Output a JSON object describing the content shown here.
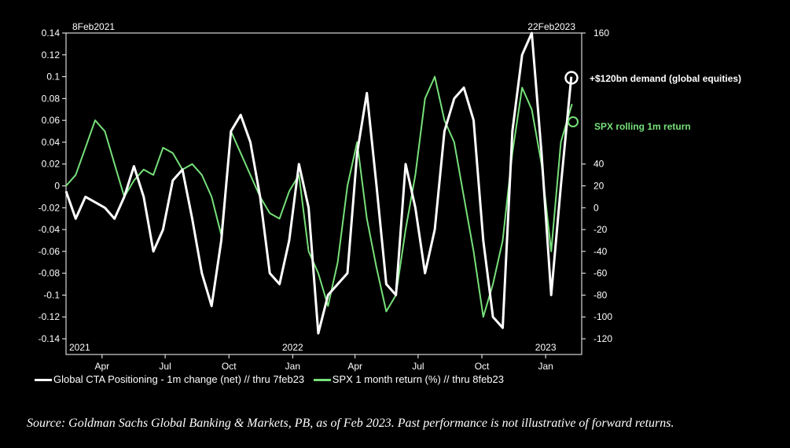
{
  "chart_data": {
    "type": "line",
    "date_range": {
      "start_label": "8Feb2021",
      "end_label": "22Feb2023"
    },
    "x_tick_labels": [
      "Apr",
      "Jul",
      "Oct",
      "Jan",
      "Apr",
      "Jul",
      "Oct",
      "Jan"
    ],
    "year_labels": [
      "2021",
      "2022",
      "2023"
    ],
    "left_axis": {
      "ylim": [
        -0.14,
        0.14
      ],
      "ticks": [
        "0.14",
        "0.12",
        "0.1",
        "0.08",
        "0.06",
        "0.04",
        "0.02",
        "0",
        "-0.02",
        "-0.04",
        "-0.06",
        "-0.08",
        "-0.1",
        "-0.12",
        "-0.14"
      ]
    },
    "right_axis": {
      "ylim": [
        -120,
        160
      ],
      "ticks": [
        "160",
        "40",
        "20",
        "0",
        "-20",
        "-40",
        "-60",
        "-80",
        "-100",
        "-120"
      ]
    },
    "series": [
      {
        "name": "Global CTA Positioning - 1m change (net) // thru 7feb23",
        "axis": "left",
        "color": "#ffffff",
        "x": [
          "2021-02-08",
          "2021-02-22",
          "2021-03-08",
          "2021-03-22",
          "2021-04-05",
          "2021-04-19",
          "2021-05-03",
          "2021-05-17",
          "2021-05-31",
          "2021-06-14",
          "2021-06-28",
          "2021-07-12",
          "2021-07-26",
          "2021-08-09",
          "2021-08-23",
          "2021-09-06",
          "2021-09-20",
          "2021-10-04",
          "2021-10-18",
          "2021-11-01",
          "2021-11-15",
          "2021-11-29",
          "2021-12-13",
          "2021-12-27",
          "2022-01-10",
          "2022-01-24",
          "2022-02-07",
          "2022-02-21",
          "2022-03-07",
          "2022-03-21",
          "2022-04-04",
          "2022-04-18",
          "2022-05-02",
          "2022-05-16",
          "2022-05-30",
          "2022-06-13",
          "2022-06-27",
          "2022-07-11",
          "2022-07-25",
          "2022-08-08",
          "2022-08-22",
          "2022-09-05",
          "2022-09-19",
          "2022-10-03",
          "2022-10-17",
          "2022-10-31",
          "2022-11-14",
          "2022-11-28",
          "2022-12-12",
          "2022-12-26",
          "2023-01-09",
          "2023-01-23",
          "2023-02-07"
        ],
        "values": [
          -0.005,
          -0.03,
          -0.01,
          -0.015,
          -0.02,
          -0.03,
          -0.01,
          0.018,
          -0.01,
          -0.06,
          -0.04,
          0.005,
          0.015,
          -0.03,
          -0.08,
          -0.11,
          -0.05,
          0.05,
          0.065,
          0.04,
          -0.01,
          -0.08,
          -0.09,
          -0.05,
          0.02,
          -0.02,
          -0.135,
          -0.1,
          -0.09,
          -0.08,
          0.03,
          0.085,
          0.0,
          -0.09,
          -0.1,
          0.02,
          -0.02,
          -0.08,
          -0.04,
          0.05,
          0.08,
          0.09,
          0.06,
          -0.05,
          -0.12,
          -0.13,
          0.05,
          0.12,
          0.14,
          0.03,
          -0.1,
          0.0,
          0.1
        ]
      },
      {
        "name": "SPX 1 month return (%) // thru 8feb23",
        "axis": "right",
        "color": "#77e07a",
        "x": [
          "2021-02-08",
          "2021-02-22",
          "2021-03-08",
          "2021-03-22",
          "2021-04-05",
          "2021-04-19",
          "2021-05-03",
          "2021-05-17",
          "2021-05-31",
          "2021-06-14",
          "2021-06-28",
          "2021-07-12",
          "2021-07-26",
          "2021-08-09",
          "2021-08-23",
          "2021-09-06",
          "2021-09-20",
          "2021-10-04",
          "2021-10-18",
          "2021-11-01",
          "2021-11-15",
          "2021-11-29",
          "2021-12-13",
          "2021-12-27",
          "2022-01-10",
          "2022-01-24",
          "2022-02-07",
          "2022-02-21",
          "2022-03-07",
          "2022-03-21",
          "2022-04-04",
          "2022-04-18",
          "2022-05-02",
          "2022-05-16",
          "2022-05-30",
          "2022-06-13",
          "2022-06-27",
          "2022-07-11",
          "2022-07-25",
          "2022-08-08",
          "2022-08-22",
          "2022-09-05",
          "2022-09-19",
          "2022-10-03",
          "2022-10-17",
          "2022-10-31",
          "2022-11-14",
          "2022-11-28",
          "2022-12-12",
          "2022-12-26",
          "2023-01-09",
          "2023-01-23",
          "2023-02-08"
        ],
        "values": [
          20,
          30,
          55,
          80,
          70,
          40,
          10,
          25,
          35,
          30,
          55,
          50,
          35,
          40,
          30,
          10,
          -25,
          70,
          50,
          30,
          10,
          -5,
          -10,
          15,
          30,
          -40,
          -60,
          -90,
          -50,
          20,
          60,
          -10,
          -55,
          -95,
          -80,
          -20,
          30,
          100,
          120,
          80,
          60,
          10,
          -40,
          -100,
          -70,
          -30,
          50,
          110,
          90,
          40,
          -40,
          60,
          95
        ]
      }
    ],
    "annotations": [
      {
        "text": "+$120bn demand (global equities)",
        "series": 0,
        "color": "#ffffff"
      },
      {
        "text": "SPX rolling 1m return",
        "series": 1,
        "color": "#77e07a"
      }
    ],
    "source": "Source: Goldman Sachs Global Banking & Markets, PB, as of Feb 2023. Past performance is not illustrative of forward returns."
  }
}
